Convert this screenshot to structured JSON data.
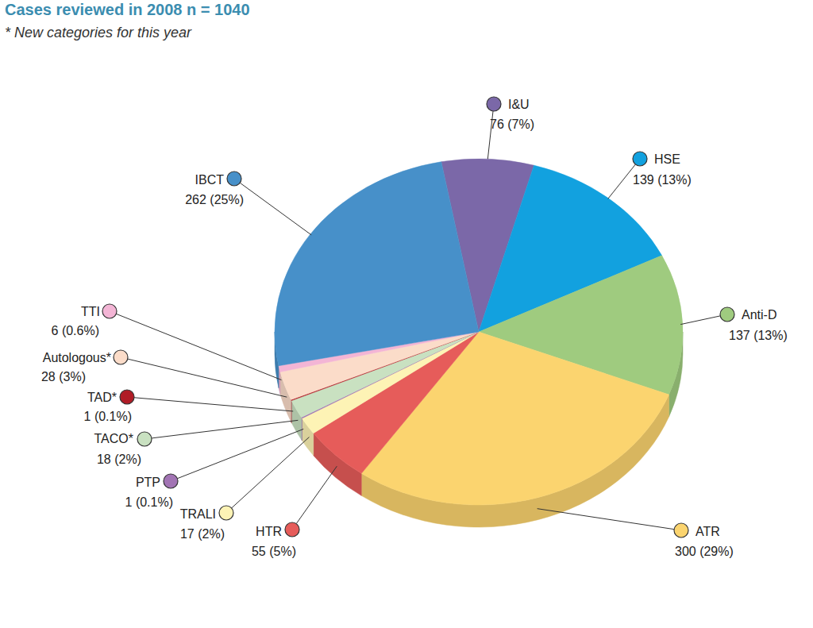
{
  "chart_data": {
    "type": "pie",
    "title": "Cases reviewed in 2008  n = 1040",
    "subtitle": "* New categories for this year",
    "categories": [
      "I&U",
      "HSE",
      "Anti-D",
      "ATR",
      "HTR",
      "TRALI",
      "PTP",
      "TACO*",
      "TAD*",
      "Autologous*",
      "TTI",
      "IBCT"
    ],
    "values": [
      76,
      139,
      137,
      300,
      55,
      17,
      1,
      18,
      1,
      28,
      6,
      262
    ],
    "value_labels": [
      "76 (7%)",
      "139 (13%)",
      "137 (13%)",
      "300 (29%)",
      "55 (5%)",
      "17 (2%)",
      "1 (0.1%)",
      "18 (2%)",
      "1 (0.1%)",
      "28 (3%)",
      "6 (0.6%)",
      "262 (25%)"
    ],
    "colors": [
      "#7b68a8",
      "#12a1df",
      "#9fcb7f",
      "#fbd46f",
      "#e65c5a",
      "#fdf3b5",
      "#a274b4",
      "#c9e1c1",
      "#b01c26",
      "#fbdcc9",
      "#f3b5d5",
      "#4790c9"
    ],
    "data_labels": true
  }
}
